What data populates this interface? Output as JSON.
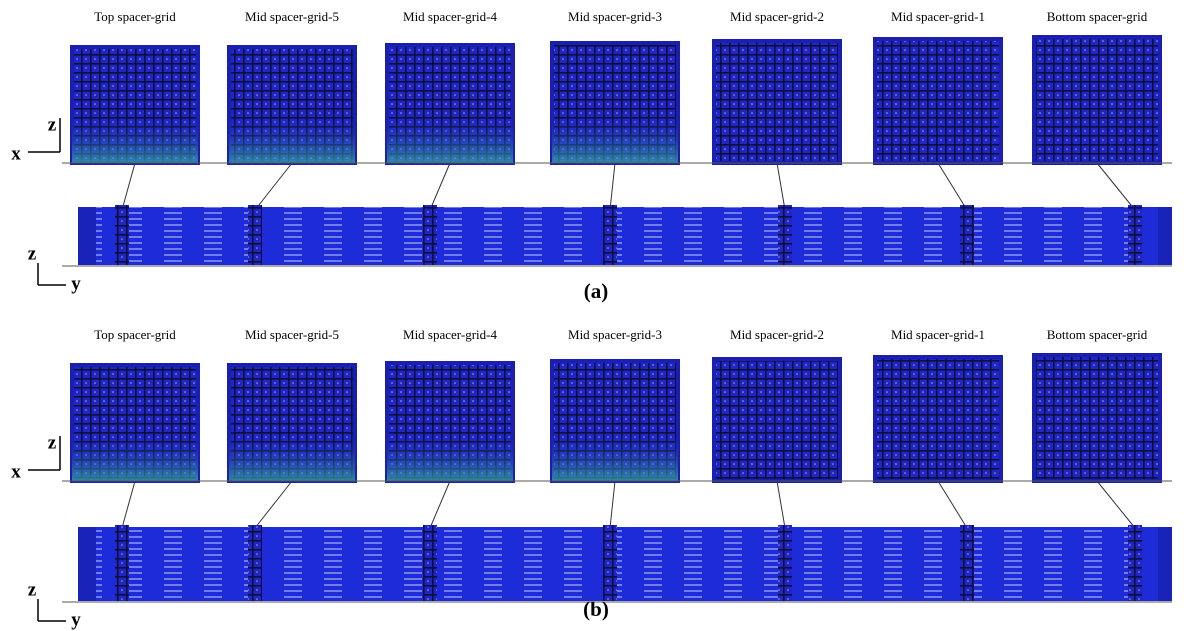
{
  "panels": [
    {
      "grid_titles": [
        "Top spacer-grid",
        "Mid spacer-grid-5",
        "Mid spacer-grid-4",
        "Mid spacer-grid-3",
        "Mid spacer-grid-2",
        "Mid spacer-grid-1",
        "Bottom spacer-grid"
      ],
      "top_axes": {
        "vertical": "z",
        "horizontal": "x"
      },
      "bottom_axes": {
        "vertical": "z",
        "horizontal": "y"
      },
      "caption": "(a)"
    },
    {
      "grid_titles": [
        "Top spacer-grid",
        "Mid spacer-grid-5",
        "Mid spacer-grid-4",
        "Mid spacer-grid-3",
        "Mid spacer-grid-2",
        "Mid spacer-grid-1",
        "Bottom spacer-grid"
      ],
      "top_axes": {
        "vertical": "z",
        "horizontal": "x"
      },
      "bottom_axes": {
        "vertical": "z",
        "horizontal": "y"
      },
      "caption": "(b)"
    }
  ]
}
